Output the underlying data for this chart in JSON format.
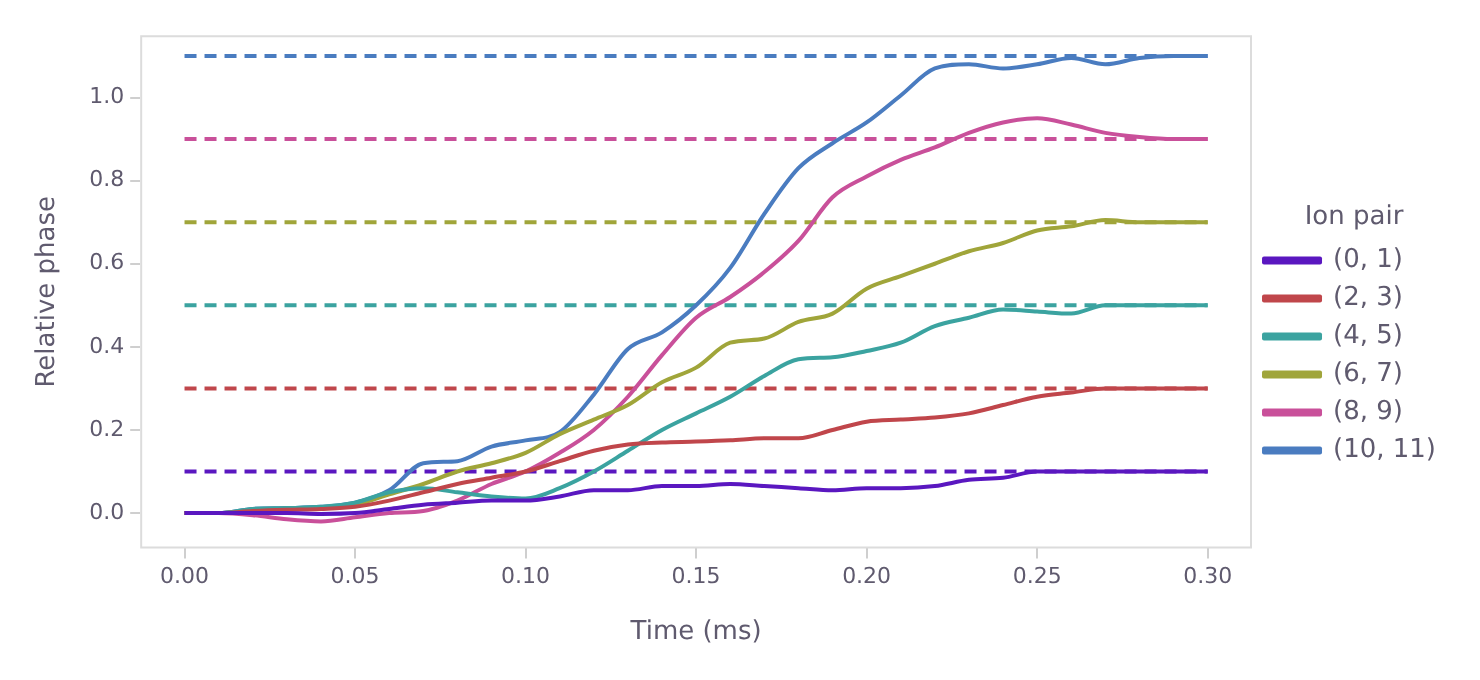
{
  "chart_data": {
    "type": "line",
    "xlabel": "Time (ms)",
    "ylabel": "Relative phase",
    "legend_title": "Ion pair",
    "legend": "right",
    "marker": "none",
    "grid": false,
    "x": [
      0,
      0.01,
      0.02,
      0.03,
      0.04,
      0.05,
      0.06,
      0.07,
      0.08,
      0.09,
      0.1,
      0.11,
      0.12,
      0.13,
      0.14,
      0.15,
      0.16,
      0.17,
      0.18,
      0.19,
      0.2,
      0.21,
      0.22,
      0.23,
      0.24,
      0.25,
      0.26,
      0.27,
      0.28,
      0.29,
      0.3
    ],
    "xlim": [
      -0.013,
      0.313
    ],
    "xticks": [
      {
        "value": 0,
        "label": "0.00"
      },
      {
        "value": 0.05,
        "label": "0.05"
      },
      {
        "value": 0.1,
        "label": "0.10"
      },
      {
        "value": 0.15,
        "label": "0.15"
      },
      {
        "value": 0.2,
        "label": "0.20"
      },
      {
        "value": 0.25,
        "label": "0.25"
      },
      {
        "value": 0.3,
        "label": "0.30"
      }
    ],
    "ylim": [
      -0.085,
      1.15
    ],
    "yticks": [
      {
        "value": 0,
        "label": "0.0"
      },
      {
        "value": 0.2,
        "label": "0.2"
      },
      {
        "value": 0.4,
        "label": "0.4"
      },
      {
        "value": 0.6,
        "label": "0.6"
      },
      {
        "value": 0.8,
        "label": "0.8"
      },
      {
        "value": 1,
        "label": "1.0"
      }
    ],
    "series": [
      {
        "name": "(0, 1)",
        "color": "#5a17c0",
        "line_style": "solid",
        "values": [
          0,
          0,
          0,
          0,
          -0.002,
          0,
          0.01,
          0.02,
          0.025,
          0.03,
          0.03,
          0.04,
          0.055,
          0.055,
          0.065,
          0.065,
          0.07,
          0.065,
          0.06,
          0.055,
          0.06,
          0.06,
          0.065,
          0.08,
          0.085,
          0.1,
          0.1,
          0.1,
          0.1,
          0.1,
          0.1
        ]
      },
      {
        "name": "(2, 3)",
        "color": "#c0464b",
        "line_style": "solid",
        "values": [
          0,
          0,
          0.005,
          0.008,
          0.01,
          0.015,
          0.03,
          0.05,
          0.07,
          0.085,
          0.1,
          0.125,
          0.15,
          0.165,
          0.17,
          0.172,
          0.175,
          0.18,
          0.18,
          0.2,
          0.22,
          0.225,
          0.23,
          0.24,
          0.26,
          0.28,
          0.29,
          0.3,
          0.3,
          0.3,
          0.3
        ]
      },
      {
        "name": "(4, 5)",
        "color": "#3ba3a0",
        "line_style": "solid",
        "values": [
          0,
          0,
          0.01,
          0.012,
          0.015,
          0.025,
          0.05,
          0.06,
          0.05,
          0.04,
          0.035,
          0.06,
          0.1,
          0.15,
          0.2,
          0.24,
          0.28,
          0.33,
          0.37,
          0.375,
          0.39,
          0.41,
          0.45,
          0.47,
          0.49,
          0.485,
          0.48,
          0.5,
          0.5,
          0.5,
          0.5
        ]
      },
      {
        "name": "(6, 7)",
        "color": "#a0a53a",
        "line_style": "solid",
        "values": [
          null,
          null,
          null,
          null,
          0.012,
          0.02,
          0.045,
          0.07,
          0.1,
          0.12,
          0.145,
          0.19,
          0.225,
          0.26,
          0.315,
          0.35,
          0.41,
          0.42,
          0.46,
          0.48,
          0.54,
          0.57,
          0.6,
          0.63,
          0.65,
          0.68,
          0.69,
          0.705,
          0.7,
          0.7,
          0.7
        ]
      },
      {
        "name": "(8, 9)",
        "color": "#c9509a",
        "line_style": "solid",
        "values": [
          0,
          0,
          -0.005,
          -0.015,
          -0.02,
          -0.01,
          0,
          0.005,
          0.03,
          0.07,
          0.1,
          0.145,
          0.2,
          0.28,
          0.38,
          0.47,
          0.52,
          0.58,
          0.655,
          0.76,
          0.81,
          0.85,
          0.88,
          0.915,
          0.94,
          0.95,
          0.935,
          0.915,
          0.905,
          0.9,
          0.9
        ]
      },
      {
        "name": "(10, 11)",
        "color": "#4a7cc0",
        "line_style": "solid",
        "values": [
          0,
          0,
          0.01,
          0.012,
          0.015,
          0.025,
          0.055,
          0.12,
          0.125,
          0.16,
          0.175,
          0.195,
          0.285,
          0.395,
          0.435,
          0.5,
          0.59,
          0.72,
          0.83,
          0.89,
          0.94,
          1.005,
          1.07,
          1.08,
          1.07,
          1.08,
          1.095,
          1.08,
          1.095,
          1.1,
          1.1
        ]
      }
    ],
    "ref_lines": [
      {
        "axis": "y",
        "value": 0.1,
        "color": "#5a17c0",
        "line_style": "dashed"
      },
      {
        "axis": "y",
        "value": 0.3,
        "color": "#c0464b",
        "line_style": "dashed"
      },
      {
        "axis": "y",
        "value": 0.5,
        "color": "#3ba3a0",
        "line_style": "dashed"
      },
      {
        "axis": "y",
        "value": 0.7,
        "color": "#a0a53a",
        "line_style": "dashed"
      },
      {
        "axis": "y",
        "value": 0.9,
        "color": "#c9509a",
        "line_style": "dashed"
      },
      {
        "axis": "y",
        "value": 1.1,
        "color": "#4a7cc0",
        "line_style": "dashed"
      }
    ]
  }
}
